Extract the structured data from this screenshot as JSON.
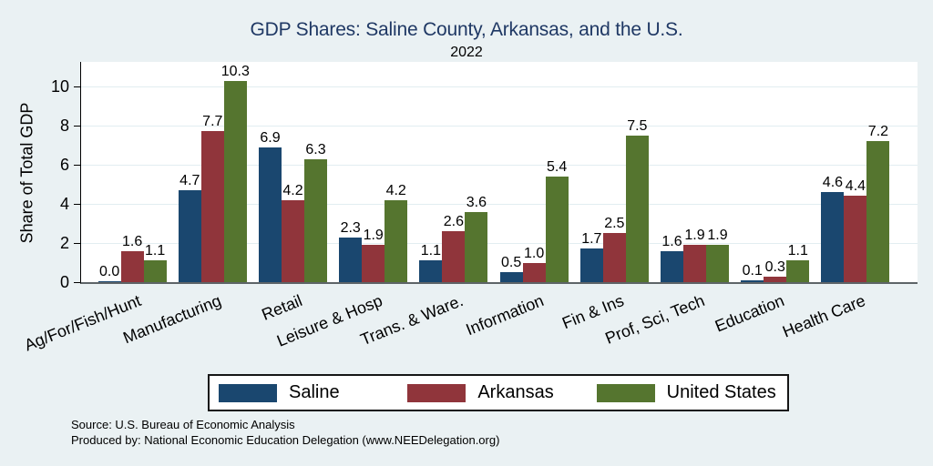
{
  "chart_data": {
    "type": "bar",
    "title": "GDP Shares: Saline County, Arkansas, and the U.S.",
    "subtitle": "2022",
    "ylabel": "Share of Total GDP",
    "xlabel": "",
    "ylim": [
      0,
      11.3
    ],
    "yticks": [
      0,
      2,
      4,
      6,
      8,
      10
    ],
    "grid": true,
    "legend_position": "bottom",
    "bar_labels": true,
    "categories": [
      "Ag/For/Fish/Hunt",
      "Manufacturing",
      "Retail",
      "Leisure & Hosp",
      "Trans. & Ware.",
      "Information",
      "Fin & Ins",
      "Prof, Sci, Tech",
      "Education",
      "Health Care"
    ],
    "series": [
      {
        "name": "Saline",
        "color": "#1a476f",
        "values": [
          0.0,
          4.7,
          6.9,
          2.3,
          1.1,
          0.5,
          1.7,
          1.6,
          0.1,
          4.6
        ]
      },
      {
        "name": "Arkansas",
        "color": "#90353b",
        "values": [
          1.6,
          7.7,
          4.2,
          1.9,
          2.6,
          1.0,
          2.5,
          1.9,
          0.3,
          4.4
        ]
      },
      {
        "name": "United States",
        "color": "#55752f",
        "values": [
          1.1,
          10.3,
          6.3,
          4.2,
          3.6,
          5.4,
          7.5,
          1.9,
          1.1,
          7.2
        ]
      }
    ]
  },
  "notes": {
    "source": "Source: U.S. Bureau of Economic Analysis",
    "produced_by": "Produced by: National Economic Education Delegation (www.NEEDelegation.org)"
  },
  "colors": {
    "page_background": "#eaf1f3",
    "plot_background": "#ffffff",
    "title_text": "#1f3864",
    "gridline": "#e2edf1",
    "y_axis_line": "#000000",
    "baseline": "#5d6467"
  }
}
